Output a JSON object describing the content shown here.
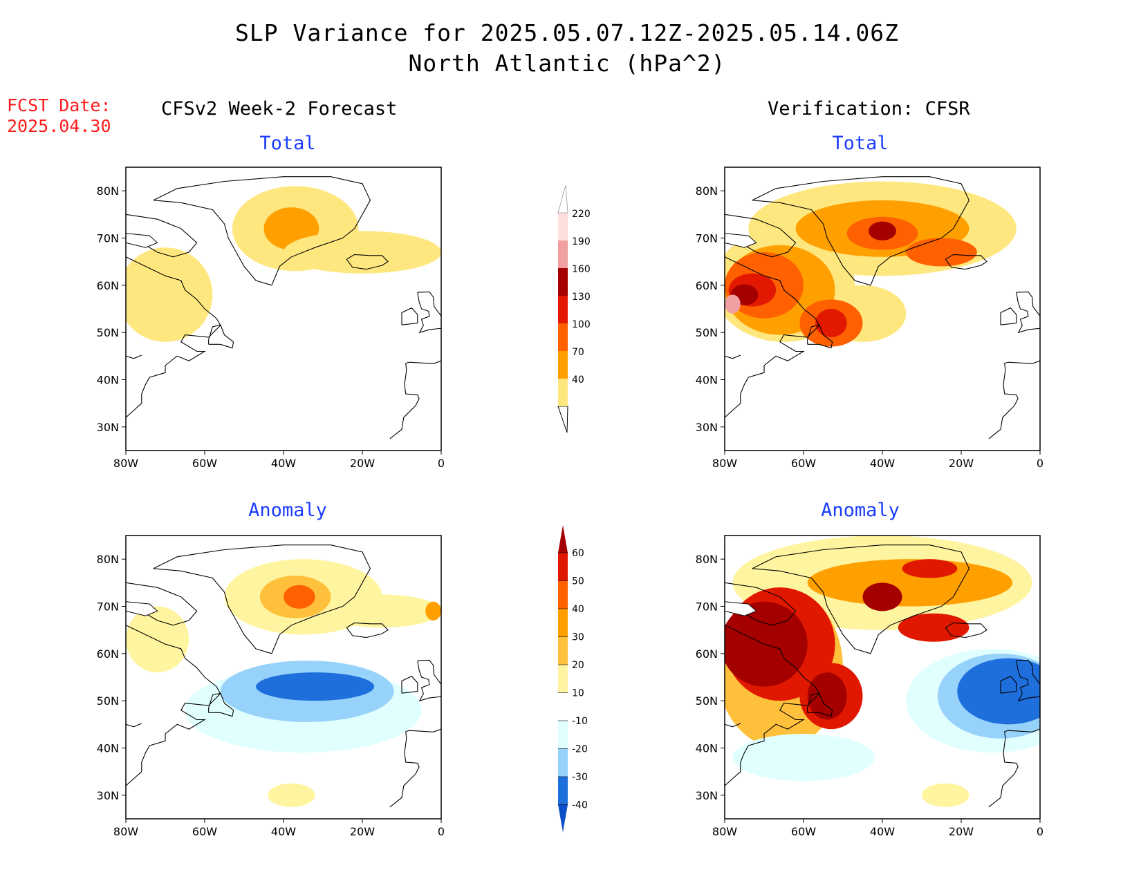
{
  "header": {
    "title_line1": "SLP Variance for 2025.05.07.12Z-2025.05.14.06Z",
    "title_line2": "North Atlantic (hPa^2)",
    "fcst_label": "FCST Date:",
    "fcst_date": "2025.04.30"
  },
  "columns": {
    "left_title": "CFSv2 Week-2 Forecast",
    "right_title": "Verification: CFSR"
  },
  "panels": {
    "top_left_title": "Total",
    "top_right_title": "Total",
    "bottom_left_title": "Anomaly",
    "bottom_right_title": "Anomaly"
  },
  "axes": {
    "lat_labels": [
      "80N",
      "70N",
      "60N",
      "50N",
      "40N",
      "30N"
    ],
    "lat_values": [
      80,
      70,
      60,
      50,
      40,
      30
    ],
    "lon_labels": [
      "80W",
      "60W",
      "40W",
      "20W",
      "0"
    ],
    "lon_values": [
      -80,
      -60,
      -40,
      -20,
      0
    ],
    "lat_range": [
      25,
      85
    ],
    "lon_range": [
      -80,
      0
    ]
  },
  "colorbars": {
    "total": {
      "levels": [
        "40",
        "70",
        "100",
        "130",
        "160",
        "190",
        "220"
      ],
      "colors": [
        "#ffe780",
        "#ffa000",
        "#ff6000",
        "#e21800",
        "#a50000",
        "#f0a0a0",
        "#ffdede"
      ]
    },
    "anomaly": {
      "levels": [
        "60",
        "50",
        "40",
        "30",
        "20",
        "10",
        "-10",
        "-20",
        "-30",
        "-40"
      ],
      "colors": [
        "#a50000",
        "#e11800",
        "#ff6000",
        "#ffa000",
        "#ffc03c",
        "#fff5a0",
        "#ffffff",
        "#e1ffff",
        "#96d2fa",
        "#1e6edc",
        "#0a50c8"
      ]
    }
  },
  "map_fields": {
    "fc_total": [
      {
        "lon": -37,
        "lat": 72,
        "rx": 16,
        "ry": 9,
        "color": "#ffe780",
        "level": "40-70"
      },
      {
        "lon": -38,
        "lat": 72,
        "rx": 7,
        "ry": 4.5,
        "color": "#ffa000",
        "level": "70-100"
      },
      {
        "lon": -20,
        "lat": 67,
        "rx": 20,
        "ry": 4.5,
        "color": "#ffe780",
        "level": "40-70"
      },
      {
        "lon": -70,
        "lat": 58,
        "rx": 12,
        "ry": 10,
        "color": "#ffe780",
        "level": "40-70"
      }
    ],
    "ver_total": [
      {
        "lon": -40,
        "lat": 72,
        "rx": 34,
        "ry": 10,
        "color": "#ffe780",
        "level": "40-70"
      },
      {
        "lon": -65,
        "lat": 60,
        "rx": 18,
        "ry": 12,
        "color": "#ffe780",
        "level": "40-70"
      },
      {
        "lon": -45,
        "lat": 54,
        "rx": 11,
        "ry": 6,
        "color": "#ffe780",
        "level": "40-70"
      },
      {
        "lon": -40,
        "lat": 72,
        "rx": 22,
        "ry": 6,
        "color": "#ffa000",
        "level": "70-100"
      },
      {
        "lon": -66,
        "lat": 59,
        "rx": 14,
        "ry": 9.5,
        "color": "#ffa000",
        "level": "70-100"
      },
      {
        "lon": -40,
        "lat": 71,
        "rx": 9,
        "ry": 3.5,
        "color": "#ff6000",
        "level": "100-130"
      },
      {
        "lon": -25,
        "lat": 67,
        "rx": 9,
        "ry": 3,
        "color": "#ff6000",
        "level": "100-130"
      },
      {
        "lon": -70,
        "lat": 60,
        "rx": 10,
        "ry": 7,
        "color": "#ff6000",
        "level": "100-130"
      },
      {
        "lon": -53,
        "lat": 52,
        "rx": 8,
        "ry": 5,
        "color": "#ff6000",
        "level": "100-130"
      },
      {
        "lon": -73,
        "lat": 59,
        "rx": 6,
        "ry": 3.5,
        "color": "#e21800",
        "level": "130-160"
      },
      {
        "lon": -53,
        "lat": 52,
        "rx": 4,
        "ry": 3,
        "color": "#e21800",
        "level": "130-160"
      },
      {
        "lon": -40,
        "lat": 71.5,
        "rx": 3.5,
        "ry": 2,
        "color": "#a50000",
        "level": "160-190"
      },
      {
        "lon": -75,
        "lat": 58,
        "rx": 3.5,
        "ry": 2.2,
        "color": "#a50000",
        "level": "160-190"
      },
      {
        "lon": -78,
        "lat": 56,
        "rx": 2,
        "ry": 2,
        "color": "#f0a0a0",
        "level": "190-220"
      }
    ],
    "fc_anom": [
      {
        "lon": -35,
        "lat": 72,
        "rx": 20,
        "ry": 8,
        "color": "#fff5a0",
        "level": "10-20"
      },
      {
        "lon": -15,
        "lat": 69,
        "rx": 15,
        "ry": 3.5,
        "color": "#fff5a0",
        "level": "10-20"
      },
      {
        "lon": -72,
        "lat": 63,
        "rx": 8,
        "ry": 7,
        "color": "#fff5a0",
        "level": "10-20"
      },
      {
        "lon": -37,
        "lat": 72,
        "rx": 9,
        "ry": 4.5,
        "color": "#ffc03c",
        "level": "20-30"
      },
      {
        "lon": -36,
        "lat": 72,
        "rx": 4,
        "ry": 2.5,
        "color": "#ff6000",
        "level": "40-50"
      },
      {
        "lon": -2,
        "lat": 69,
        "rx": 2,
        "ry": 2,
        "color": "#ffa000",
        "level": "30-40"
      },
      {
        "lon": -35,
        "lat": 48,
        "rx": 30,
        "ry": 9,
        "color": "#e1ffff",
        "level": "-20--10"
      },
      {
        "lon": -34,
        "lat": 52,
        "rx": 22,
        "ry": 6.5,
        "color": "#96d2fa",
        "level": "-30--20"
      },
      {
        "lon": -32,
        "lat": 53,
        "rx": 15,
        "ry": 3,
        "color": "#1e6edc",
        "level": "-40--30"
      },
      {
        "lon": -38,
        "lat": 30,
        "rx": 6,
        "ry": 2.5,
        "color": "#fff5a0",
        "level": "10-20"
      }
    ],
    "ver_anom": [
      {
        "lon": -40,
        "lat": 75,
        "rx": 38,
        "ry": 10,
        "color": "#fff5a0",
        "level": "10-20"
      },
      {
        "lon": -66,
        "lat": 57,
        "rx": 16,
        "ry": 17,
        "color": "#ffc03c",
        "level": "20-30"
      },
      {
        "lon": -33,
        "lat": 75,
        "rx": 26,
        "ry": 5,
        "color": "#ffa000",
        "level": "30-40"
      },
      {
        "lon": -66,
        "lat": 62,
        "rx": 14,
        "ry": 12,
        "color": "#e11800",
        "level": "50-60"
      },
      {
        "lon": -53,
        "lat": 51,
        "rx": 8,
        "ry": 7,
        "color": "#e11800",
        "level": "50-60"
      },
      {
        "lon": -70,
        "lat": 62,
        "rx": 11,
        "ry": 9,
        "color": "#a50000",
        "level": ">60"
      },
      {
        "lon": -54,
        "lat": 51,
        "rx": 5,
        "ry": 5,
        "color": "#a50000",
        "level": ">60"
      },
      {
        "lon": -40,
        "lat": 72,
        "rx": 5,
        "ry": 3,
        "color": "#a50000",
        "level": ">60"
      },
      {
        "lon": -27,
        "lat": 65.5,
        "rx": 9,
        "ry": 3,
        "color": "#e11800",
        "level": "50-60"
      },
      {
        "lon": -28,
        "lat": 78,
        "rx": 7,
        "ry": 2,
        "color": "#e11800",
        "level": "50-60"
      },
      {
        "lon": -12,
        "lat": 50,
        "rx": 22,
        "ry": 11,
        "color": "#e1ffff",
        "level": "-20--10"
      },
      {
        "lon": -10,
        "lat": 51,
        "rx": 16,
        "ry": 9,
        "color": "#96d2fa",
        "level": "-30--20"
      },
      {
        "lon": -8,
        "lat": 52,
        "rx": 13,
        "ry": 7,
        "color": "#1e6edc",
        "level": "-40--30"
      },
      {
        "lon": -60,
        "lat": 38,
        "rx": 18,
        "ry": 5,
        "color": "#e1ffff",
        "level": "-20--10"
      },
      {
        "lon": -24,
        "lat": 30,
        "rx": 6,
        "ry": 2.5,
        "color": "#fff5a0",
        "level": "10-20"
      }
    ]
  }
}
